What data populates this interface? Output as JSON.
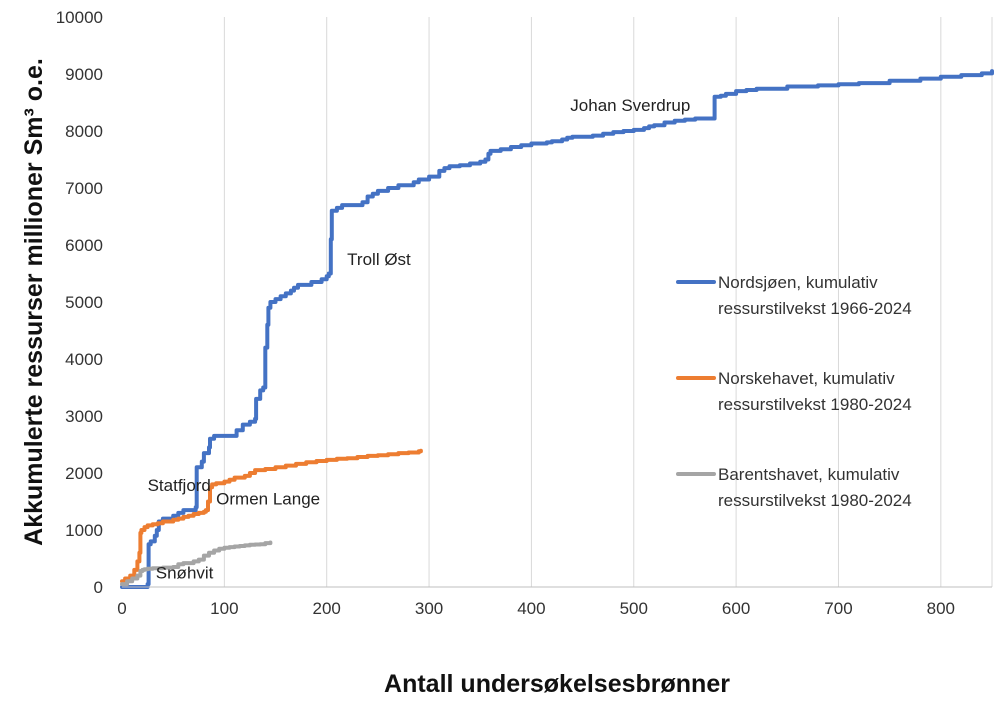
{
  "chart_data": {
    "type": "line",
    "title": "",
    "xlabel": "Antall undersøkelsesbrønner",
    "ylabel": "Akkumulerte ressurser millioner Sm³ o.e.",
    "xlim": [
      0,
      850
    ],
    "ylim": [
      0,
      10000
    ],
    "grid": "vertical",
    "legend_position": "right",
    "x_ticks": [
      "0",
      "100",
      "200",
      "300",
      "400",
      "500",
      "600",
      "700",
      "800"
    ],
    "y_ticks": [
      "0",
      "1000",
      "2000",
      "3000",
      "4000",
      "5000",
      "6000",
      "7000",
      "8000",
      "9000",
      "10000"
    ],
    "series": [
      {
        "name": "Nordsjøen, kumulativ ressurstilvekst 1966-2024",
        "legend_line1": "Nordsjøen, kumulativ",
        "legend_line2": "ressurstilvekst 1966-2024",
        "color": "#4472C4",
        "x": [
          0,
          18,
          25,
          26,
          28,
          32,
          34,
          36,
          40,
          50,
          55,
          60,
          72,
          73,
          78,
          80,
          85,
          86,
          90,
          110,
          112,
          118,
          125,
          130,
          131,
          135,
          138,
          140,
          142,
          143,
          145,
          150,
          155,
          160,
          165,
          168,
          172,
          180,
          185,
          195,
          200,
          202,
          204,
          205,
          210,
          215,
          225,
          235,
          240,
          245,
          250,
          260,
          270,
          280,
          285,
          290,
          300,
          310,
          315,
          320,
          330,
          340,
          350,
          355,
          358,
          360,
          370,
          380,
          390,
          400,
          410,
          415,
          420,
          430,
          435,
          440,
          450,
          460,
          470,
          480,
          490,
          500,
          510,
          515,
          520,
          530,
          540,
          550,
          560,
          570,
          578,
          579,
          585,
          590,
          600,
          610,
          620,
          650,
          680,
          700,
          720,
          750,
          780,
          800,
          820,
          840,
          850
        ],
        "y": [
          0,
          0,
          50,
          750,
          800,
          900,
          1000,
          1150,
          1200,
          1250,
          1300,
          1350,
          1400,
          2100,
          2200,
          2350,
          2450,
          2600,
          2650,
          2650,
          2750,
          2850,
          2900,
          2950,
          3300,
          3450,
          3500,
          4200,
          4600,
          4900,
          5000,
          5050,
          5100,
          5150,
          5200,
          5250,
          5300,
          5300,
          5350,
          5400,
          5450,
          5500,
          6100,
          6600,
          6650,
          6700,
          6700,
          6750,
          6850,
          6900,
          6950,
          7000,
          7050,
          7050,
          7100,
          7150,
          7200,
          7300,
          7350,
          7380,
          7400,
          7430,
          7460,
          7500,
          7600,
          7650,
          7680,
          7720,
          7750,
          7780,
          7780,
          7800,
          7820,
          7850,
          7880,
          7900,
          7900,
          7920,
          7950,
          7980,
          8000,
          8020,
          8050,
          8080,
          8100,
          8150,
          8180,
          8200,
          8220,
          8220,
          8220,
          8600,
          8620,
          8650,
          8700,
          8720,
          8740,
          8780,
          8800,
          8820,
          8840,
          8880,
          8920,
          8950,
          8980,
          9010,
          9050
        ]
      },
      {
        "name": "Norskehavet, kumulativ ressurstilvekst 1980-2024",
        "legend_line1": "Norskehavet, kumulativ",
        "legend_line2": "ressurstilvekst 1980-2024",
        "color": "#ED7D31",
        "x": [
          0,
          3,
          8,
          12,
          15,
          17,
          18,
          19,
          22,
          25,
          30,
          35,
          40,
          50,
          55,
          60,
          65,
          70,
          75,
          80,
          82,
          84,
          86,
          88,
          92,
          100,
          105,
          110,
          120,
          125,
          130,
          140,
          150,
          160,
          170,
          180,
          190,
          200,
          210,
          220,
          230,
          240,
          250,
          260,
          270,
          280,
          290,
          292
        ],
        "y": [
          100,
          150,
          200,
          300,
          450,
          600,
          950,
          1000,
          1050,
          1080,
          1100,
          1120,
          1150,
          1180,
          1200,
          1230,
          1250,
          1280,
          1300,
          1320,
          1350,
          1500,
          1750,
          1800,
          1820,
          1850,
          1880,
          1920,
          1950,
          2000,
          2050,
          2070,
          2100,
          2130,
          2160,
          2190,
          2210,
          2230,
          2250,
          2260,
          2280,
          2300,
          2310,
          2330,
          2350,
          2360,
          2380,
          2390
        ]
      },
      {
        "name": "Barentshavet, kumulativ ressurstilvekst 1980-2024",
        "legend_line1": "Barentshavet, kumulativ",
        "legend_line2": "ressurstilvekst 1980-2024",
        "color": "#A5A5A5",
        "x": [
          0,
          5,
          10,
          15,
          18,
          20,
          22,
          25,
          30,
          40,
          50,
          55,
          60,
          70,
          75,
          80,
          85,
          90,
          95,
          100,
          105,
          110,
          115,
          120,
          125,
          130,
          135,
          140,
          145
        ],
        "y": [
          50,
          100,
          150,
          200,
          280,
          300,
          310,
          320,
          330,
          340,
          350,
          400,
          420,
          450,
          480,
          550,
          600,
          640,
          670,
          690,
          700,
          710,
          720,
          730,
          740,
          745,
          750,
          770,
          780
        ]
      }
    ],
    "annotations": [
      {
        "text": "Statfjord",
        "x": 25,
        "y": 1680
      },
      {
        "text": "Snøhvit",
        "x": 33,
        "y": 150
      },
      {
        "text": "Ormen Lange",
        "x": 92,
        "y": 1450
      },
      {
        "text": "Troll Øst",
        "x": 220,
        "y": 5650
      },
      {
        "text": "Johan Sverdrup",
        "x": 438,
        "y": 8350
      }
    ]
  }
}
